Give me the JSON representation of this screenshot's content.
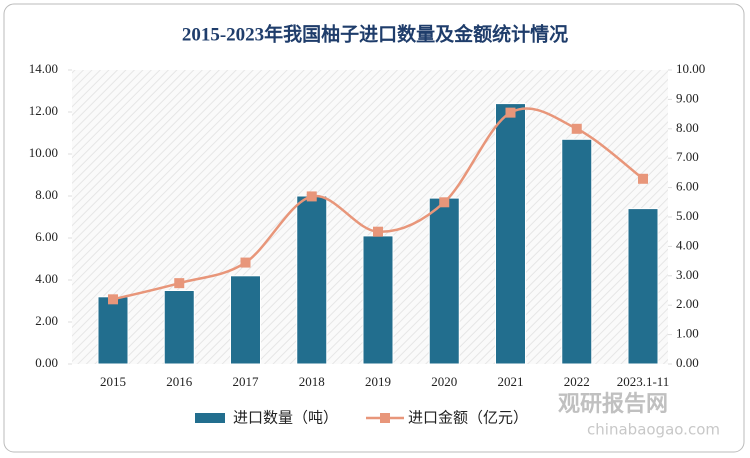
{
  "chart_data": {
    "type": "combo",
    "title": "2015-2023年我国柚子进口数量及金额统计情况",
    "categories": [
      "2015",
      "2016",
      "2017",
      "2018",
      "2019",
      "2020",
      "2021",
      "2022",
      "2023.1-11"
    ],
    "series": [
      {
        "name": "进口数量（吨）",
        "type": "bar",
        "axis": "y",
        "color": "#226e8e",
        "values": [
          3.2,
          3.5,
          4.2,
          8.0,
          6.1,
          7.9,
          12.4,
          10.7,
          7.4
        ]
      },
      {
        "name": "进口金额（亿元）",
        "type": "line",
        "axis": "y2",
        "color": "#e8967a",
        "values": [
          2.2,
          2.75,
          3.45,
          5.7,
          4.5,
          5.5,
          8.55,
          8.0,
          6.3
        ]
      }
    ],
    "ylim": [
      0,
      14
    ],
    "yticks": [
      {
        "value": 0,
        "label": "0.00"
      },
      {
        "value": 2,
        "label": "2.00"
      },
      {
        "value": 4,
        "label": "4.00"
      },
      {
        "value": 6,
        "label": "6.00"
      },
      {
        "value": 8,
        "label": "8.00"
      },
      {
        "value": 10,
        "label": "10.00"
      },
      {
        "value": 12,
        "label": "12.00"
      },
      {
        "value": 14,
        "label": "14.00"
      }
    ],
    "y2lim": [
      0,
      10
    ],
    "y2ticks": [
      {
        "value": 0,
        "label": "0.00"
      },
      {
        "value": 1,
        "label": "1.00"
      },
      {
        "value": 2,
        "label": "2.00"
      },
      {
        "value": 3,
        "label": "3.00"
      },
      {
        "value": 4,
        "label": "4.00"
      },
      {
        "value": 5,
        "label": "5.00"
      },
      {
        "value": 6,
        "label": "6.00"
      },
      {
        "value": 7,
        "label": "7.00"
      },
      {
        "value": 8,
        "label": "8.00"
      },
      {
        "value": 9,
        "label": "9.00"
      },
      {
        "value": 10,
        "label": "10.00"
      }
    ],
    "legend": "bottom",
    "watermark": {
      "brand": "观研报告网",
      "site": "chinabaogao.com"
    }
  }
}
